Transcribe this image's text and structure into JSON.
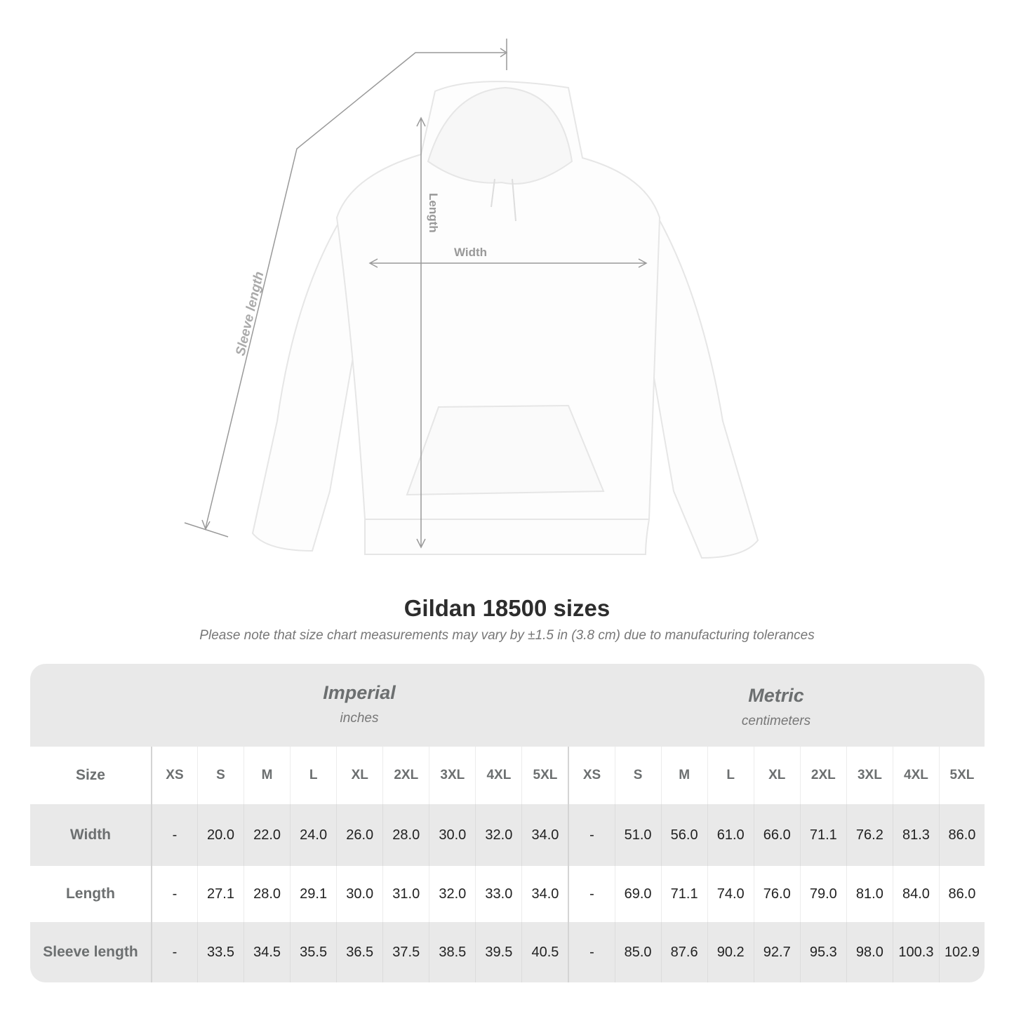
{
  "diagram": {
    "labels": {
      "sleeve": "Sleeve length",
      "length": "Length",
      "width": "Width"
    }
  },
  "title": "Gildan 18500 sizes",
  "note": "Please note that size chart measurements may vary by ±1.5 in (3.8 cm) due to manufacturing tolerances",
  "systems": [
    {
      "name": "Imperial",
      "unit": "inches"
    },
    {
      "name": "Metric",
      "unit": "centimeters"
    }
  ],
  "size_label": "Size",
  "sizes": [
    "XS",
    "S",
    "M",
    "L",
    "XL",
    "2XL",
    "3XL",
    "4XL",
    "5XL"
  ],
  "rows": [
    {
      "label": "Width",
      "imperial": [
        "-",
        "20.0",
        "22.0",
        "24.0",
        "26.0",
        "28.0",
        "30.0",
        "32.0",
        "34.0"
      ],
      "metric": [
        "-",
        "51.0",
        "56.0",
        "61.0",
        "66.0",
        "71.1",
        "76.2",
        "81.3",
        "86.0"
      ]
    },
    {
      "label": "Length",
      "imperial": [
        "-",
        "27.1",
        "28.0",
        "29.1",
        "30.0",
        "31.0",
        "32.0",
        "33.0",
        "34.0"
      ],
      "metric": [
        "-",
        "69.0",
        "71.1",
        "74.0",
        "76.0",
        "79.0",
        "81.0",
        "84.0",
        "86.0"
      ]
    },
    {
      "label": "Sleeve length",
      "imperial": [
        "-",
        "33.5",
        "34.5",
        "35.5",
        "36.5",
        "37.5",
        "38.5",
        "39.5",
        "40.5"
      ],
      "metric": [
        "-",
        "85.0",
        "87.6",
        "90.2",
        "92.7",
        "95.3",
        "98.0",
        "100.3",
        "102.9"
      ]
    }
  ]
}
